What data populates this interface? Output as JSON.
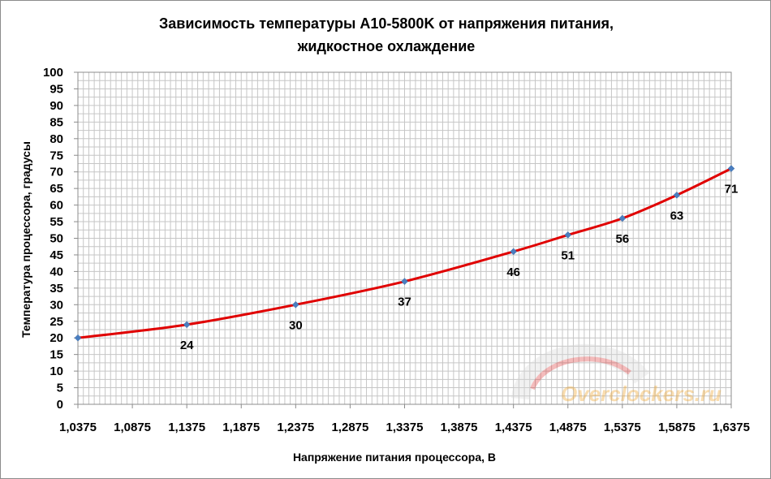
{
  "chart_data": {
    "type": "line",
    "title_line1": "Зависимость температуры A10-5800K от напряжения питания,",
    "title_line2": "жидкостное охлаждение",
    "xlabel": "Напряжение питания процессора, В",
    "ylabel": "Температура процессора, градусы",
    "x_tick_labels": [
      "1,0375",
      "1,0875",
      "1,1375",
      "1,1875",
      "1,2375",
      "1,2875",
      "1,3375",
      "1,3875",
      "1,4375",
      "1,4875",
      "1,5375",
      "1,5875",
      "1,6375"
    ],
    "xlim": [
      1.0375,
      1.6375
    ],
    "ylim": [
      0,
      100
    ],
    "y_ticks": [
      0,
      5,
      10,
      15,
      20,
      25,
      30,
      35,
      40,
      45,
      50,
      55,
      60,
      65,
      70,
      75,
      80,
      85,
      90,
      95,
      100
    ],
    "series": [
      {
        "x": [
          1.0375,
          1.1375,
          1.2375,
          1.3375,
          1.4375,
          1.4875,
          1.5375,
          1.5875,
          1.6375
        ],
        "values": [
          20,
          24,
          30,
          37,
          46,
          51,
          56,
          63,
          71
        ],
        "data_labels": [
          "",
          "24",
          "30",
          "37",
          "46",
          "51",
          "56",
          "63",
          "71"
        ]
      }
    ],
    "line_color": "#e00000",
    "marker_color": "#4a7ebf",
    "grid": true,
    "grid_color": "#c6c6c6"
  },
  "watermark": {
    "text": "Overclockers.ru",
    "color": "#f0a020"
  }
}
